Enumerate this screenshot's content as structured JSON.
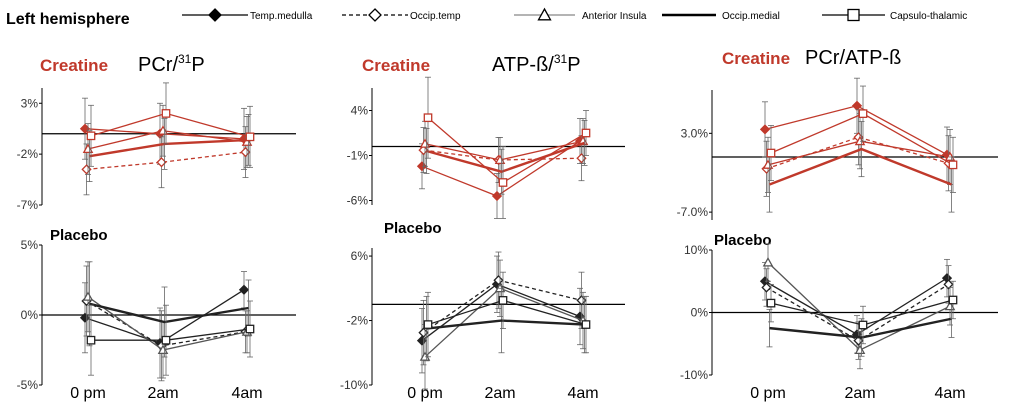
{
  "header": "Left hemisphere",
  "legend": [
    {
      "label": "Temp.medulla",
      "marker": "diamond-filled",
      "dash": "solid"
    },
    {
      "label": "Occip.temp",
      "marker": "diamond-open",
      "dash": "dashed"
    },
    {
      "label": "Anterior Insula",
      "marker": "triangle-open",
      "dash": "solid-gray"
    },
    {
      "label": "Occip.medial",
      "marker": "none",
      "dash": "bold"
    },
    {
      "label": "Capsulo-thalamic",
      "marker": "square-open",
      "dash": "solid"
    }
  ],
  "colors": {
    "creatine": "#c0392b",
    "placebo": "#222222",
    "axis": "#000000",
    "error": "#666666"
  },
  "groups": {
    "creatine": "Creatine",
    "placebo": "Placebo"
  },
  "columns": [
    {
      "ratio_main": "PCr/",
      "ratio_sup": "31",
      "ratio_end": "P"
    },
    {
      "ratio_main": "ATP-ß/",
      "ratio_sup": "31",
      "ratio_end": "P"
    },
    {
      "ratio_main": "PCr/ATP-ß",
      "ratio_sup": "",
      "ratio_end": ""
    }
  ],
  "chart_data": [
    {
      "type": "line",
      "group": "Creatine",
      "title": "PCr/31P",
      "categories": [
        "0 pm",
        "2am",
        "4am"
      ],
      "yticks": [
        "3%",
        "-2%",
        "-7%"
      ],
      "ylim": [
        -7,
        4.5
      ],
      "baseline": 0,
      "series": [
        {
          "name": "Temp.medulla",
          "values": [
            0.5,
            0.0,
            -0.5
          ],
          "err": [
            3.0,
            3.0,
            3.0
          ]
        },
        {
          "name": "Occip.temp",
          "values": [
            -3.5,
            -2.8,
            -1.8
          ],
          "err": [
            2.5,
            2.5,
            2.5
          ]
        },
        {
          "name": "Anterior Insula",
          "values": [
            -1.5,
            0.3,
            -0.8
          ],
          "err": [
            2.5,
            2.5,
            2.5
          ]
        },
        {
          "name": "Occip.medial",
          "values": [
            -2.2,
            -1.0,
            -0.6
          ],
          "err": [
            2.5,
            2.5,
            2.5
          ]
        },
        {
          "name": "Capsulo-thalamic",
          "values": [
            -0.2,
            2.0,
            -0.3
          ],
          "err": [
            3.0,
            3.0,
            3.0
          ]
        }
      ]
    },
    {
      "type": "line",
      "group": "Creatine",
      "title": "ATP-ß/31P",
      "categories": [
        "0 pm",
        "2am",
        "4am"
      ],
      "yticks": [
        "4%",
        "-1%",
        "-6%"
      ],
      "ylim": [
        -6.5,
        6.5
      ],
      "baseline": 0,
      "series": [
        {
          "name": "Temp.medulla",
          "values": [
            -2.2,
            -5.5,
            0.6
          ],
          "err": [
            2.5,
            2.5,
            2.5
          ]
        },
        {
          "name": "Occip.temp",
          "values": [
            -0.4,
            -1.5,
            -1.3
          ],
          "err": [
            2.5,
            2.5,
            2.5
          ]
        },
        {
          "name": "Anterior Insula",
          "values": [
            0.3,
            -1.5,
            0.6
          ],
          "err": [
            2.5,
            2.5,
            2.5
          ]
        },
        {
          "name": "Occip.medial",
          "values": [
            -0.5,
            -2.8,
            0.4
          ],
          "err": [
            2.5,
            2.5,
            2.5
          ]
        },
        {
          "name": "Capsulo-thalamic",
          "values": [
            3.2,
            -4.0,
            1.5
          ],
          "err": [
            4.5,
            4.0,
            2.5
          ]
        }
      ]
    },
    {
      "type": "line",
      "group": "Creatine",
      "title": "PCr/ATP-ß",
      "categories": [
        "0 pm",
        "2am",
        "4am"
      ],
      "yticks": [
        "3.0%",
        "-7.0%"
      ],
      "ylim": [
        -8,
        8.5
      ],
      "baseline": 0,
      "series": [
        {
          "name": "Temp.medulla",
          "values": [
            3.5,
            6.5,
            0.3
          ],
          "err": [
            3.5,
            3.5,
            3.5
          ]
        },
        {
          "name": "Occip.temp",
          "values": [
            -1.5,
            2.5,
            -0.8
          ],
          "err": [
            3.5,
            3.5,
            3.5
          ]
        },
        {
          "name": "Anterior Insula",
          "values": [
            -1.0,
            2.0,
            0.0
          ],
          "err": [
            3.5,
            3.5,
            3.5
          ]
        },
        {
          "name": "Occip.medial",
          "values": [
            -3.5,
            1.0,
            -3.5
          ],
          "err": [
            3.5,
            3.5,
            3.5
          ]
        },
        {
          "name": "Capsulo-thalamic",
          "values": [
            0.5,
            5.5,
            -1.0
          ],
          "err": [
            3.5,
            3.5,
            3.5
          ]
        }
      ]
    },
    {
      "type": "line",
      "group": "Placebo",
      "title": "PCr/31P",
      "categories": [
        "0 pm",
        "2am",
        "4am"
      ],
      "yticks": [
        "5%",
        "0%",
        "-5%"
      ],
      "ylim": [
        -5,
        5
      ],
      "baseline": 0,
      "series": [
        {
          "name": "Temp.medulla",
          "values": [
            -0.2,
            -2.0,
            1.8
          ],
          "err": [
            2.5,
            2.5,
            1.3
          ]
        },
        {
          "name": "Occip.temp",
          "values": [
            1.0,
            -2.2,
            -1.2
          ],
          "err": [
            2.5,
            2.5,
            1.5
          ]
        },
        {
          "name": "Anterior Insula",
          "values": [
            1.3,
            -2.5,
            -1.2
          ],
          "err": [
            2.5,
            2.0,
            1.5
          ]
        },
        {
          "name": "Occip.medial",
          "values": [
            0.8,
            -0.5,
            0.5
          ],
          "err": [
            3.0,
            2.5,
            2.0
          ]
        },
        {
          "name": "Capsulo-thalamic",
          "values": [
            -1.8,
            -1.8,
            -1.0
          ],
          "err": [
            2.5,
            2.5,
            2.0
          ]
        }
      ]
    },
    {
      "type": "line",
      "group": "Placebo",
      "title": "ATP-ß/31P",
      "categories": [
        "0 pm",
        "2am",
        "4am"
      ],
      "yticks": [
        "6%",
        "-2%",
        "-10%"
      ],
      "ylim": [
        -10,
        7
      ],
      "baseline": 0,
      "series": [
        {
          "name": "Temp.medulla",
          "values": [
            -4.5,
            2.5,
            -1.5
          ],
          "err": [
            4.0,
            3.5,
            3.5
          ]
        },
        {
          "name": "Occip.temp",
          "values": [
            -3.5,
            3.0,
            0.5
          ],
          "err": [
            4.0,
            3.5,
            3.5
          ]
        },
        {
          "name": "Anterior Insula",
          "values": [
            -6.5,
            2.0,
            -2.0
          ],
          "err": [
            4.0,
            3.5,
            3.5
          ]
        },
        {
          "name": "Occip.medial",
          "values": [
            -3.0,
            -2.0,
            -2.5
          ],
          "err": [
            4.0,
            4.0,
            3.5
          ]
        },
        {
          "name": "Capsulo-thalamic",
          "values": [
            -2.5,
            0.5,
            -2.5
          ],
          "err": [
            4.0,
            3.5,
            3.5
          ]
        }
      ]
    },
    {
      "type": "line",
      "group": "Placebo",
      "title": "PCr/ATP-ß",
      "categories": [
        "0 pm",
        "2am",
        "4am"
      ],
      "yticks": [
        "10%",
        "0%",
        "-10%"
      ],
      "ylim": [
        -10,
        10
      ],
      "baseline": 0,
      "series": [
        {
          "name": "Temp.medulla",
          "values": [
            5.0,
            -3.5,
            5.5
          ],
          "err": [
            3.0,
            3.0,
            3.0
          ]
        },
        {
          "name": "Occip.temp",
          "values": [
            4.0,
            -4.5,
            4.5
          ],
          "err": [
            3.0,
            3.0,
            3.0
          ]
        },
        {
          "name": "Anterior Insula",
          "values": [
            8.0,
            -6.0,
            1.0
          ],
          "err": [
            3.0,
            3.0,
            3.0
          ]
        },
        {
          "name": "Occip.medial",
          "values": [
            -2.5,
            -4.0,
            -1.0
          ],
          "err": [
            3.0,
            3.0,
            3.0
          ]
        },
        {
          "name": "Capsulo-thalamic",
          "values": [
            1.5,
            -2.0,
            2.0
          ],
          "err": [
            3.0,
            3.0,
            3.0
          ]
        }
      ]
    }
  ]
}
